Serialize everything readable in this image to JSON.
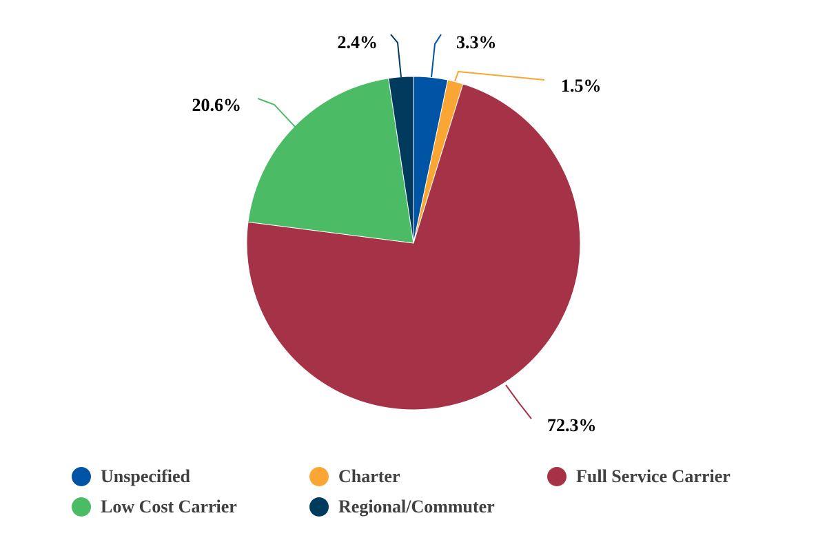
{
  "chart_data": {
    "type": "pie",
    "title": "",
    "categories": [
      "Unspecified",
      "Charter",
      "Full Service Carrier",
      "Low Cost Carrier",
      "Regional/Commuter"
    ],
    "values": [
      3.3,
      1.5,
      72.3,
      20.6,
      2.4
    ],
    "value_labels": [
      "3.3%",
      "1.5%",
      "72.3%",
      "20.6%",
      "2.4%"
    ],
    "colors": [
      "#0054A6",
      "#FAA634",
      "#A63248",
      "#4CBB65",
      "#003A5D"
    ],
    "start_angle_deg": 0,
    "direction": "clockwise",
    "legend_position": "bottom"
  }
}
